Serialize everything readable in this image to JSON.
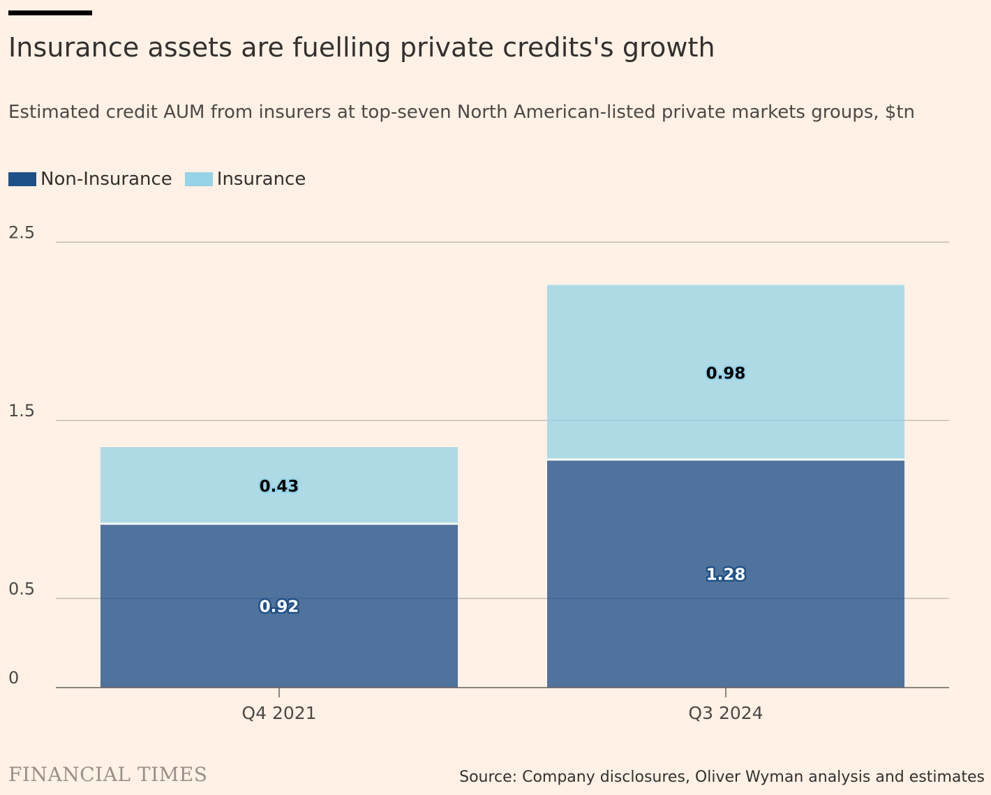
{
  "header": {
    "title": "Insurance assets are fuelling private credits's growth",
    "subtitle": "Estimated credit AUM from insurers at top-seven North American-listed private markets groups, $tn"
  },
  "footer": {
    "brand": "FINANCIAL TIMES",
    "source": "Source: Company disclosures, Oliver Wyman analysis and estimates"
  },
  "chart_data": {
    "type": "bar",
    "stacked": true,
    "categories": [
      "Q4 2021",
      "Q3 2024"
    ],
    "series": [
      {
        "name": "Non-Insurance",
        "values": [
          0.92,
          1.28
        ],
        "color": "#1e5088",
        "label_color": "#ffffff"
      },
      {
        "name": "Insurance",
        "values": [
          0.43,
          0.98
        ],
        "color": "#96d3e6",
        "label_color": "#000000"
      }
    ],
    "yticks": [
      0,
      0.5,
      1.5,
      2.5
    ],
    "ytick_labels": [
      "0",
      "0.5",
      "1.5",
      "2.5"
    ],
    "ylim": [
      0,
      2.5
    ],
    "grid": true,
    "legend_position": "top-left",
    "xlabel": "",
    "ylabel": ""
  }
}
